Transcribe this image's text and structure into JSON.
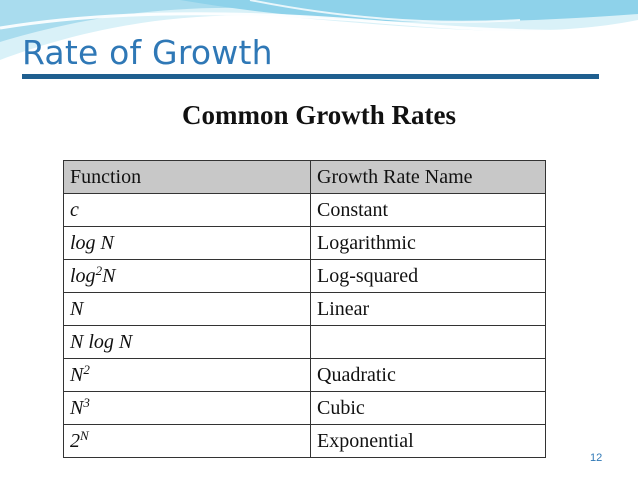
{
  "slide": {
    "title": "Rate of Growth",
    "page_number": "12"
  },
  "table": {
    "title": "Common Growth Rates",
    "headers": [
      "Function",
      "Growth Rate Name"
    ],
    "rows": [
      {
        "fn_base": "c",
        "fn_sup": "",
        "fn_rest": "",
        "name": "Constant"
      },
      {
        "fn_base": "log N",
        "fn_sup": "",
        "fn_rest": "",
        "name": "Logarithmic"
      },
      {
        "fn_base": "log",
        "fn_sup": "2",
        "fn_rest": "N",
        "name": "Log-squared"
      },
      {
        "fn_base": "N",
        "fn_sup": "",
        "fn_rest": "",
        "name": "Linear"
      },
      {
        "fn_base": "N log N",
        "fn_sup": "",
        "fn_rest": "",
        "name": ""
      },
      {
        "fn_base": "N",
        "fn_sup": "2",
        "fn_rest": "",
        "name": "Quadratic"
      },
      {
        "fn_base": "N",
        "fn_sup": "3",
        "fn_rest": "",
        "name": "Cubic"
      },
      {
        "fn_base": "2",
        "fn_sup": "N",
        "fn_rest": "",
        "name": "Exponential"
      }
    ]
  },
  "colors": {
    "title": "#2f78b6",
    "rule": "#1f5f8f",
    "header_fill": "#c8c8c8",
    "wave_light": "#bfe6f3",
    "wave_mid": "#7fcbe6"
  }
}
